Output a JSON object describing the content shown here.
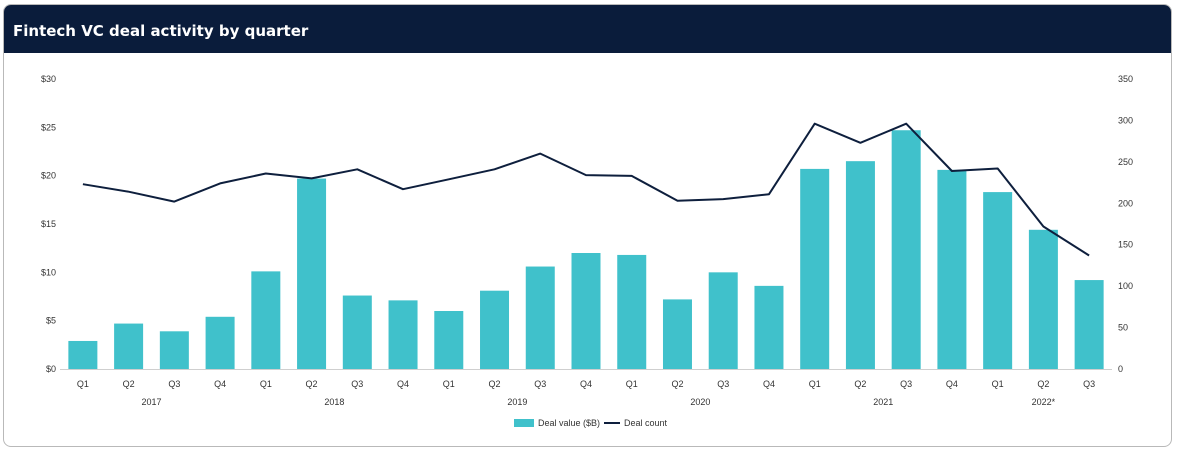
{
  "title": "Fintech VC deal activity by quarter",
  "colors": {
    "header_bg": "#0a1c3b",
    "bar": "#40c1cb",
    "line": "#0e1f3d"
  },
  "chart_data": {
    "type": "bar+line",
    "categories": [
      "Q1",
      "Q2",
      "Q3",
      "Q4",
      "Q1",
      "Q2",
      "Q3",
      "Q4",
      "Q1",
      "Q2",
      "Q3",
      "Q4",
      "Q1",
      "Q2",
      "Q3",
      "Q4",
      "Q1",
      "Q2",
      "Q3",
      "Q4",
      "Q1",
      "Q2",
      "Q3"
    ],
    "year_groups": [
      {
        "label": "2017",
        "start": 0,
        "end": 3
      },
      {
        "label": "2018",
        "start": 4,
        "end": 7
      },
      {
        "label": "2019",
        "start": 8,
        "end": 11
      },
      {
        "label": "2020",
        "start": 12,
        "end": 15
      },
      {
        "label": "2021",
        "start": 16,
        "end": 19
      },
      {
        "label": "2022*",
        "start": 20,
        "end": 22
      }
    ],
    "series": [
      {
        "name": "Deal value ($B)",
        "type": "bar",
        "axis": "left",
        "values": [
          2.9,
          4.7,
          3.9,
          5.4,
          10.1,
          19.7,
          7.6,
          7.1,
          6.0,
          8.1,
          10.6,
          12.0,
          11.8,
          7.2,
          10.0,
          8.6,
          20.7,
          21.5,
          24.7,
          20.6,
          18.3,
          14.4,
          9.2
        ]
      },
      {
        "name": "Deal count",
        "type": "line",
        "axis": "right",
        "values": [
          223,
          214,
          202,
          224,
          236,
          230,
          241,
          217,
          229,
          241,
          260,
          234,
          233,
          203,
          205,
          211,
          296,
          273,
          296,
          239,
          242,
          172,
          137
        ]
      }
    ],
    "y_left": {
      "min": 0,
      "max": 30,
      "ticks": [
        "$0",
        "$5",
        "$10",
        "$15",
        "$20",
        "$25",
        "$30"
      ]
    },
    "y_right": {
      "min": 0,
      "max": 350,
      "ticks": [
        "0",
        "50",
        "100",
        "150",
        "200",
        "250",
        "300",
        "350"
      ]
    },
    "legend": {
      "position": "bottom-center",
      "items": [
        "Deal value ($B)",
        "Deal count"
      ]
    }
  }
}
